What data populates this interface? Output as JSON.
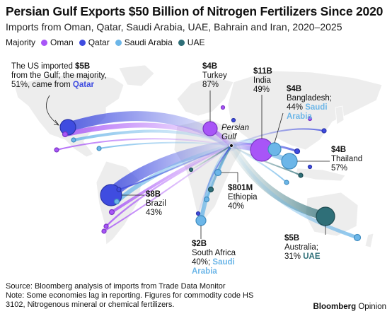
{
  "title": "Persian Gulf Exports $50 Billion of Nitrogen Fertilizers Since 2020",
  "subtitle": "Imports from Oman, Qatar, Saudi Arabia, UAE, Bahrain and Iran, 2020–2025",
  "legend": {
    "label": "Majority",
    "items": [
      {
        "name": "Oman",
        "color": "#a855f7"
      },
      {
        "name": "Qatar",
        "color": "#3f4ce0"
      },
      {
        "name": "Saudi Arabia",
        "color": "#6cb6e8"
      },
      {
        "name": "UAE",
        "color": "#2f6f78"
      }
    ]
  },
  "origin_label": "Persian\nGulf",
  "annotations": {
    "us": {
      "pre": "The US imported ",
      "value": "$5B",
      "mid": "from the Gulf; the majority,",
      "pct": "51%, came from ",
      "country": "Qatar"
    },
    "turkey": {
      "value": "$4B",
      "country": "Turkey",
      "pct": "87%"
    },
    "india": {
      "value": "$11B",
      "country": "India",
      "pct": "49%"
    },
    "bangladesh": {
      "value": "$4B",
      "country": "Bangladesh;",
      "pct": "44% ",
      "hl1": "Saudi",
      "hl2": "Arabia"
    },
    "thailand": {
      "value": "$4B",
      "country": "Thailand",
      "pct": "57%"
    },
    "brazil": {
      "value": "$8B",
      "country": "Brazil",
      "pct": "43%"
    },
    "ethiopia": {
      "value": "$801M",
      "country": "Ethiopia",
      "pct": "40%"
    },
    "south_africa": {
      "value": "$2B",
      "country": "South Africa",
      "pct": "40%; ",
      "hl1": "Saudi",
      "hl2": "Arabia"
    },
    "australia": {
      "value": "$5B",
      "country": "Australia;",
      "pct": "31% ",
      "hl": "UAE"
    }
  },
  "chart_data": {
    "type": "flow-map",
    "title": "Persian Gulf Exports $50 Billion of Nitrogen Fertilizers Since 2020",
    "subtitle": "Imports from Oman, Qatar, Saudi Arabia, UAE, Bahrain and Iran, 2020–2025",
    "origin": "Persian Gulf",
    "unit": "USD",
    "flows": [
      {
        "country": "US",
        "value": "$5B",
        "value_usd_billion": 5,
        "majority_exporter": "Qatar",
        "majority_share_pct": 51
      },
      {
        "country": "Turkey",
        "value": "$4B",
        "value_usd_billion": 4,
        "majority_exporter": "Oman",
        "majority_share_pct": 87
      },
      {
        "country": "India",
        "value": "$11B",
        "value_usd_billion": 11,
        "majority_exporter": "Oman",
        "majority_share_pct": 49
      },
      {
        "country": "Bangladesh",
        "value": "$4B",
        "value_usd_billion": 4,
        "majority_exporter": "Saudi Arabia",
        "majority_share_pct": 44
      },
      {
        "country": "Thailand",
        "value": "$4B",
        "value_usd_billion": 4,
        "majority_exporter": "Saudi Arabia",
        "majority_share_pct": 57
      },
      {
        "country": "Brazil",
        "value": "$8B",
        "value_usd_billion": 8,
        "majority_exporter": "Qatar",
        "majority_share_pct": 43
      },
      {
        "country": "Ethiopia",
        "value": "$801M",
        "value_usd_billion": 0.801,
        "majority_exporter": "Saudi Arabia",
        "majority_share_pct": 40
      },
      {
        "country": "South Africa",
        "value": "$2B",
        "value_usd_billion": 2,
        "majority_exporter": "Saudi Arabia",
        "majority_share_pct": 40
      },
      {
        "country": "Australia",
        "value": "$5B",
        "value_usd_billion": 5,
        "majority_exporter": "UAE",
        "majority_share_pct": 31
      }
    ]
  },
  "source": "Source: Bloomberg analysis of imports from Trade Data Monitor",
  "note1": "Note: Some economies lag in reporting. Figures for commodity code HS",
  "note2": "3102, Nitrogenous mineral or chemical fertilizers.",
  "brand": {
    "name": "Bloomberg",
    "suffix": "Opinion"
  }
}
